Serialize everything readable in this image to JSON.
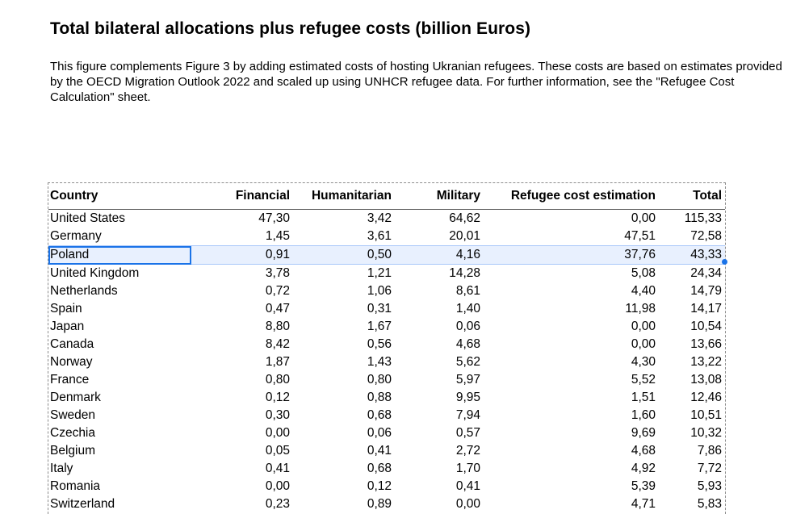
{
  "title": "Total bilateral allocations plus refugee costs (billion Euros)",
  "description": "This figure complements Figure 3 by adding estimated costs of hosting Ukranian refugees. These costs are based on estimates provided by the OECD Migration Outlook 2022 and scaled up using UNHCR refugee data. For further information, see the \"Refugee Cost Calculation\" sheet.",
  "table": {
    "headers": {
      "country": "Country",
      "financial": "Financial",
      "humanitarian": "Humanitarian",
      "military": "Military",
      "refugee": "Refugee cost estimation",
      "total": "Total"
    },
    "selected_row": 2,
    "rows": [
      {
        "country": "United States",
        "financial": "47,30",
        "humanitarian": "3,42",
        "military": "64,62",
        "refugee": "0,00",
        "total": "115,33"
      },
      {
        "country": "Germany",
        "financial": "1,45",
        "humanitarian": "3,61",
        "military": "20,01",
        "refugee": "47,51",
        "total": "72,58"
      },
      {
        "country": "Poland",
        "financial": "0,91",
        "humanitarian": "0,50",
        "military": "4,16",
        "refugee": "37,76",
        "total": "43,33"
      },
      {
        "country": "United Kingdom",
        "financial": "3,78",
        "humanitarian": "1,21",
        "military": "14,28",
        "refugee": "5,08",
        "total": "24,34"
      },
      {
        "country": "Netherlands",
        "financial": "0,72",
        "humanitarian": "1,06",
        "military": "8,61",
        "refugee": "4,40",
        "total": "14,79"
      },
      {
        "country": "Spain",
        "financial": "0,47",
        "humanitarian": "0,31",
        "military": "1,40",
        "refugee": "11,98",
        "total": "14,17"
      },
      {
        "country": "Japan",
        "financial": "8,80",
        "humanitarian": "1,67",
        "military": "0,06",
        "refugee": "0,00",
        "total": "10,54"
      },
      {
        "country": "Canada",
        "financial": "8,42",
        "humanitarian": "0,56",
        "military": "4,68",
        "refugee": "0,00",
        "total": "13,66"
      },
      {
        "country": "Norway",
        "financial": "1,87",
        "humanitarian": "1,43",
        "military": "5,62",
        "refugee": "4,30",
        "total": "13,22"
      },
      {
        "country": "France",
        "financial": "0,80",
        "humanitarian": "0,80",
        "military": "5,97",
        "refugee": "5,52",
        "total": "13,08"
      },
      {
        "country": "Denmark",
        "financial": "0,12",
        "humanitarian": "0,88",
        "military": "9,95",
        "refugee": "1,51",
        "total": "12,46"
      },
      {
        "country": "Sweden",
        "financial": "0,30",
        "humanitarian": "0,68",
        "military": "7,94",
        "refugee": "1,60",
        "total": "10,51"
      },
      {
        "country": "Czechia",
        "financial": "0,00",
        "humanitarian": "0,06",
        "military": "0,57",
        "refugee": "9,69",
        "total": "10,32"
      },
      {
        "country": "Belgium",
        "financial": "0,05",
        "humanitarian": "0,41",
        "military": "2,72",
        "refugee": "4,68",
        "total": "7,86"
      },
      {
        "country": "Italy",
        "financial": "0,41",
        "humanitarian": "0,68",
        "military": "1,70",
        "refugee": "4,92",
        "total": "7,72"
      },
      {
        "country": "Romania",
        "financial": "0,00",
        "humanitarian": "0,12",
        "military": "0,41",
        "refugee": "5,39",
        "total": "5,93"
      },
      {
        "country": "Switzerland",
        "financial": "0,23",
        "humanitarian": "0,89",
        "military": "0,00",
        "refugee": "4,71",
        "total": "5,83"
      }
    ]
  },
  "colors": {
    "selection_fill": "#e8f0fe",
    "selection_border": "#1a73e8"
  }
}
